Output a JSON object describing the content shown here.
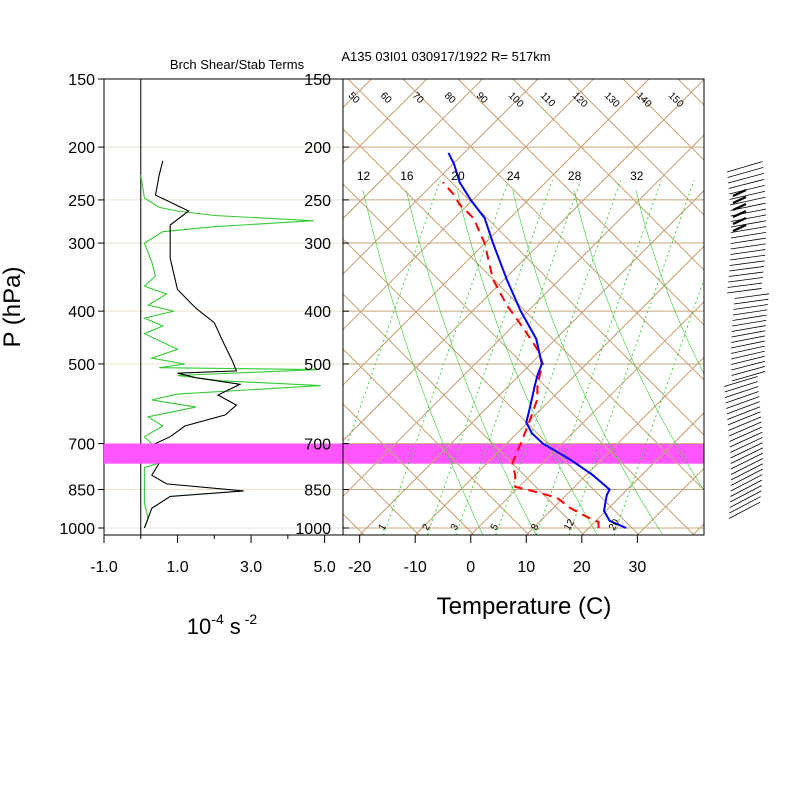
{
  "header": {
    "left_title": "Brch Shear/Stab Terms",
    "right_title": "A135 03I01 030917/1922 R= 517km"
  },
  "colors": {
    "skewt_lines": "#c8a47c",
    "mixing_ratio": "#33cc33",
    "temperature": "#0000ff",
    "dewpoint": "#ff0000",
    "highlight_band": "#ff55ff",
    "shear_curve": "#000000",
    "stab_curve": "#33cc33"
  },
  "chart_data": [
    {
      "type": "line",
      "name": "brch-shear-stab-panel",
      "title": "Brch Shear/Stab Terms",
      "xlabel": "10",
      "xlabel_exp": "-4",
      "xlabel_unit": "s",
      "xlabel_unit_exp": "-2",
      "ylabel": "P (hPa)",
      "x_tick_labels": [
        "-1.0",
        "1.0",
        "3.0",
        "5.0"
      ],
      "x_ticks": [
        -1,
        1,
        3,
        5
      ],
      "xlim": [
        -1,
        5.5
      ],
      "ylim": [
        1030,
        150
      ],
      "y_scale": "log",
      "y_ticks": [
        150,
        200,
        250,
        300,
        400,
        500,
        700,
        850,
        1000
      ],
      "y_tick_labels": [
        "150",
        "200",
        "250",
        "300",
        "400",
        "500",
        "700",
        "850",
        "1000"
      ],
      "series": [
        {
          "role": "stability",
          "points": [
            [
              0,
              225
            ],
            [
              0.1,
              248
            ],
            [
              0.5,
              258
            ],
            [
              1,
              262
            ],
            [
              2,
              267
            ],
            [
              4.7,
              273
            ],
            [
              2,
              280
            ],
            [
              0.6,
              286
            ],
            [
              0.1,
              300
            ],
            [
              0.3,
              325
            ],
            [
              0.4,
              345
            ],
            [
              0.1,
              360
            ],
            [
              0.7,
              372
            ],
            [
              0.2,
              390
            ],
            [
              0.9,
              400
            ],
            [
              0.1,
              412
            ],
            [
              0.6,
              426
            ],
            [
              0.1,
              440
            ],
            [
              1,
              470
            ],
            [
              0.3,
              488
            ],
            [
              1.2,
              500
            ],
            [
              0.5,
              508
            ],
            [
              4.8,
              512
            ],
            [
              1,
              525
            ],
            [
              2.2,
              537
            ],
            [
              4.9,
              548
            ],
            [
              1,
              568
            ],
            [
              0.3,
              582
            ],
            [
              1.5,
              600
            ],
            [
              0.2,
              625
            ],
            [
              0.6,
              650
            ],
            [
              0.1,
              680
            ],
            [
              0.3,
              700
            ],
            [
              0.2,
              720
            ],
            [
              0.8,
              748
            ],
            [
              0.1,
              775
            ],
            [
              0.1,
              900
            ],
            [
              0.2,
              960
            ],
            [
              0.1,
              1000
            ]
          ]
        },
        {
          "role": "shear",
          "points": [
            [
              0.6,
              212
            ],
            [
              0.5,
              225
            ],
            [
              0.4,
              245
            ],
            [
              1.3,
              262
            ],
            [
              0.8,
              278
            ],
            [
              0.8,
              320
            ],
            [
              1,
              365
            ],
            [
              1.5,
              395
            ],
            [
              2,
              420
            ],
            [
              2.2,
              450
            ],
            [
              2.5,
              495
            ],
            [
              2.6,
              515
            ],
            [
              1,
              520
            ],
            [
              1.5,
              530
            ],
            [
              2.7,
              545
            ],
            [
              2.1,
              570
            ],
            [
              2.6,
              595
            ],
            [
              2.3,
              620
            ],
            [
              1.2,
              650
            ],
            [
              0.8,
              680
            ],
            [
              0.1,
              715
            ],
            [
              0.4,
              730
            ],
            [
              0.5,
              760
            ],
            [
              0.3,
              800
            ],
            [
              0.7,
              830
            ],
            [
              2.8,
              855
            ],
            [
              0.8,
              875
            ],
            [
              0.3,
              920
            ],
            [
              0.1,
              1000
            ]
          ]
        }
      ]
    },
    {
      "type": "line",
      "name": "skew-t-panel",
      "title": "A135 03I01 030917/1922 R= 517km",
      "xlabel": "Temperature (C)",
      "x_tick_labels": [
        "-20",
        "-10",
        "0",
        "10",
        "20",
        "30"
      ],
      "x_ticks": [
        -20,
        -10,
        0,
        10,
        20,
        30
      ],
      "xlim": [
        -23,
        42
      ],
      "ylim": [
        1030,
        150
      ],
      "y_scale": "log",
      "y_ticks": [
        150,
        200,
        250,
        300,
        400,
        500,
        700,
        850,
        1000
      ],
      "y_tick_labels": [
        "150",
        "200",
        "250",
        "300",
        "400",
        "500",
        "700",
        "850",
        "1000"
      ],
      "highlight_band_hpa": [
        700,
        762
      ],
      "mixing_ratio_labels": [
        "12",
        "16",
        "20",
        "24",
        "28",
        "32"
      ],
      "mixing_ratio_label_x": [
        -20.5,
        -12.7,
        -3.5,
        6.5,
        17.5,
        28.7
      ],
      "mixing_ratio_bottom_labels": [
        "1",
        "2",
        "3",
        "5",
        "8",
        "12",
        "20"
      ],
      "mixing_ratio_bottom_x": [
        -15.7,
        -7.8,
        -2.7,
        4.5,
        11.8,
        17.7,
        25.8
      ],
      "theta_labels": [
        "50",
        "60",
        "70",
        "80",
        "90",
        "100",
        "110",
        "120",
        "130",
        "140",
        "150"
      ],
      "series": [
        {
          "name": "Temperature",
          "role": "temperature",
          "points": [
            [
              28,
              1000
            ],
            [
              25,
              970
            ],
            [
              24,
              930
            ],
            [
              24.5,
              870
            ],
            [
              25,
              850
            ],
            [
              22,
              800
            ],
            [
              18,
              750
            ],
            [
              13,
              700
            ],
            [
              11,
              670
            ],
            [
              10,
              640
            ],
            [
              10.5,
              610
            ],
            [
              11,
              580
            ],
            [
              11.5,
              550
            ],
            [
              12,
              525
            ],
            [
              12.8,
              500
            ],
            [
              11.8,
              450
            ],
            [
              9,
              400
            ],
            [
              6.5,
              350
            ],
            [
              4,
              300
            ],
            [
              2.5,
              270
            ],
            [
              0,
              250
            ],
            [
              -2,
              232
            ],
            [
              -3,
              215
            ],
            [
              -4,
              205
            ]
          ]
        },
        {
          "name": "Dewpoint",
          "role": "dewpoint",
          "points": [
            [
              23,
              1000
            ],
            [
              23,
              975
            ],
            [
              21,
              955
            ],
            [
              18,
              920
            ],
            [
              15.5,
              880
            ],
            [
              12,
              860
            ],
            [
              8,
              840
            ],
            [
              8,
              800
            ],
            [
              7.5,
              760
            ],
            [
              9,
              700
            ],
            [
              10,
              660
            ],
            [
              11,
              620
            ],
            [
              12,
              580
            ],
            [
              12,
              550
            ],
            [
              12.5,
              520
            ],
            [
              13,
              500
            ],
            [
              12,
              470
            ],
            [
              9.5,
              430
            ],
            [
              6.5,
              390
            ],
            [
              4,
              350
            ],
            [
              2.5,
              300
            ],
            [
              0.5,
              270
            ],
            [
              -2,
              255
            ],
            [
              -3,
              245
            ],
            [
              -5,
              232
            ]
          ]
        }
      ]
    }
  ]
}
